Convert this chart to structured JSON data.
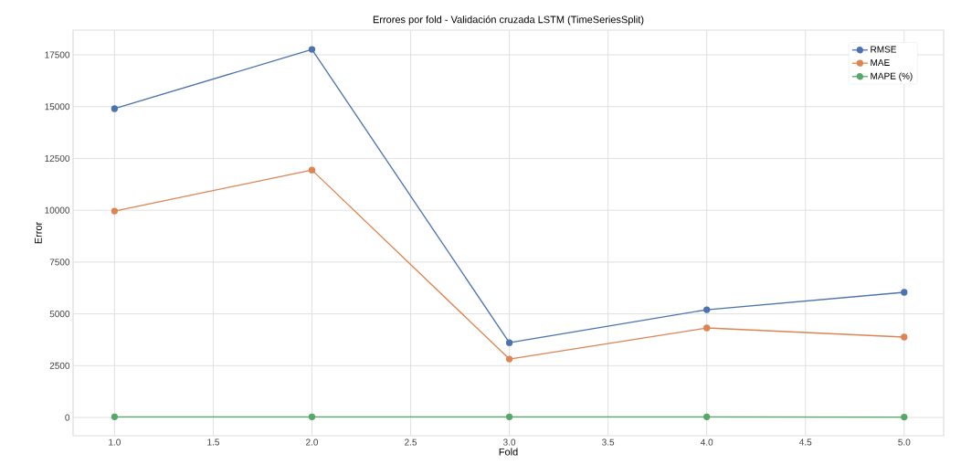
{
  "chart_data": {
    "type": "line",
    "title": "Errores por fold - Validación cruzada LSTM (TimeSeriesSplit)",
    "xlabel": "Fold",
    "ylabel": "Error",
    "x": [
      1,
      2,
      3,
      4,
      5
    ],
    "series": [
      {
        "name": "RMSE",
        "color": "#4c72b0",
        "values": [
          14900,
          17760,
          3610,
          5200,
          6040
        ]
      },
      {
        "name": "MAE",
        "color": "#dd8452",
        "values": [
          9960,
          11940,
          2820,
          4320,
          3880
        ]
      },
      {
        "name": "MAPE (%)",
        "color": "#55a868",
        "values": [
          30,
          30,
          30,
          30,
          20
        ]
      }
    ],
    "xlim": [
      0.79,
      5.2
    ],
    "ylim": [
      -880,
      18690
    ],
    "xticks": [
      {
        "value": 1,
        "label": "1.0"
      },
      {
        "value": 1.5,
        "label": "1.5"
      },
      {
        "value": 2,
        "label": "2.0"
      },
      {
        "value": 2.5,
        "label": "2.5"
      },
      {
        "value": 3,
        "label": "3.0"
      },
      {
        "value": 3.5,
        "label": "3.5"
      },
      {
        "value": 4,
        "label": "4.0"
      },
      {
        "value": 4.5,
        "label": "4.5"
      },
      {
        "value": 5,
        "label": "5.0"
      }
    ],
    "yticks": [
      0,
      2500,
      5000,
      7500,
      10000,
      12500,
      15000,
      17500
    ],
    "grid": true,
    "legend": "top right",
    "marker": "circle",
    "line_style": "solid"
  }
}
